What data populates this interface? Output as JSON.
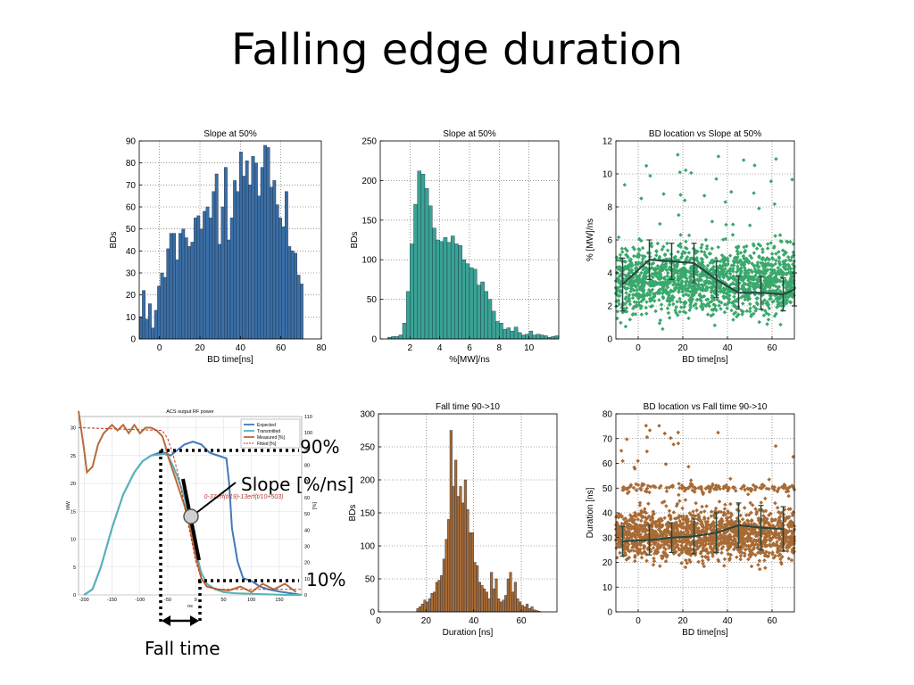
{
  "slide": {
    "title": "Falling edge duration"
  },
  "annotations": {
    "p90": "90%",
    "slope": "Slope [%/ns]",
    "p10": "10%",
    "fall_time": "Fall time"
  },
  "chart_data": [
    {
      "id": "hist-bd-time",
      "type": "bar",
      "title": "Slope at 50%",
      "xlabel": "BD time[ns]",
      "ylabel": "BDs",
      "xlim": [
        -10,
        80
      ],
      "ylim": [
        0,
        90
      ],
      "xticks": [
        0,
        20,
        40,
        60,
        80
      ],
      "yticks": [
        0,
        10,
        20,
        30,
        40,
        50,
        60,
        70,
        80,
        90
      ],
      "bin_width": 1.5,
      "x_start": -10,
      "color": "#3a6ea5",
      "grid": true,
      "values": [
        10,
        22,
        9,
        16,
        5,
        13,
        24,
        30,
        28,
        41,
        48,
        48,
        36,
        48,
        50,
        46,
        42,
        44,
        55,
        56,
        50,
        58,
        60,
        55,
        67,
        75,
        43,
        60,
        78,
        45,
        55,
        72,
        67,
        85,
        74,
        81,
        70,
        83,
        80,
        65,
        78,
        88,
        87,
        69,
        72,
        61,
        55,
        51,
        67,
        42,
        40,
        39,
        29,
        25
      ]
    },
    {
      "id": "hist-slope",
      "type": "bar",
      "title": "Slope at 50%",
      "xlabel": "%[MW]/ns",
      "ylabel": "BDs",
      "xlim": [
        0,
        12
      ],
      "ylim": [
        0,
        250
      ],
      "xticks": [
        2,
        4,
        6,
        8,
        10
      ],
      "yticks": [
        0,
        50,
        100,
        150,
        200,
        250
      ],
      "bin_width": 0.25,
      "x_start": 0.5,
      "color": "#3aa394",
      "grid": true,
      "values": [
        2,
        3,
        3,
        5,
        20,
        60,
        120,
        170,
        212,
        208,
        190,
        168,
        140,
        125,
        123,
        128,
        122,
        130,
        120,
        118,
        100,
        95,
        90,
        88,
        68,
        72,
        60,
        50,
        35,
        22,
        20,
        12,
        14,
        10,
        15,
        8,
        5,
        6,
        10,
        5,
        6,
        5,
        4,
        2,
        3,
        4,
        3,
        1,
        0,
        0,
        0,
        0
      ]
    },
    {
      "id": "scatter-slope",
      "type": "scatter",
      "title": "BD location vs Slope at 50%",
      "xlabel": "BD time[ns]",
      "ylabel": "% [MW]/ns",
      "xlim": [
        -10,
        70
      ],
      "ylim": [
        0,
        12
      ],
      "xticks": [
        0,
        20,
        40,
        60
      ],
      "yticks": [
        0,
        2,
        4,
        6,
        8,
        10,
        12
      ],
      "color": "#3aa86c",
      "grid": true,
      "cloud": {
        "y_center": 3.6,
        "y_spread": 1.4,
        "count": 1600,
        "outlier_max": 11.5
      },
      "mean_line": {
        "x": [
          -7,
          5,
          15,
          25,
          35,
          45,
          55,
          65,
          70
        ],
        "y": [
          3.3,
          4.8,
          4.7,
          4.6,
          3.6,
          2.8,
          2.8,
          2.7,
          3.0
        ],
        "err": [
          1.6,
          1.2,
          1.1,
          1.2,
          1.1,
          1.0,
          1.0,
          1.0,
          1.0
        ]
      }
    },
    {
      "id": "hist-fall-time",
      "type": "bar",
      "title": "Fall time 90->10",
      "xlabel": "Duration [ns]",
      "ylabel": "BDs",
      "xlim": [
        0,
        75
      ],
      "ylim": [
        0,
        300
      ],
      "xticks": [
        0,
        20,
        40,
        60
      ],
      "yticks": [
        0,
        50,
        100,
        150,
        200,
        250,
        300
      ],
      "bin_width": 1.0,
      "x_start": 1,
      "color": "#a86b35",
      "grid": true,
      "values": [
        0,
        0,
        0,
        0,
        0,
        0,
        0,
        0,
        0,
        0,
        0,
        0,
        0,
        0,
        0,
        5,
        8,
        12,
        18,
        15,
        20,
        28,
        30,
        45,
        48,
        55,
        80,
        110,
        140,
        275,
        190,
        230,
        175,
        190,
        165,
        200,
        155,
        120,
        120,
        75,
        70,
        45,
        40,
        35,
        30,
        20,
        60,
        35,
        50,
        20,
        15,
        18,
        25,
        50,
        60,
        30,
        45,
        20,
        15,
        10,
        8,
        12,
        5,
        8,
        3,
        2,
        1,
        0,
        0,
        0,
        0,
        0,
        0,
        0
      ]
    },
    {
      "id": "scatter-fall-time",
      "type": "scatter",
      "title": "BD location vs Fall time 90->10",
      "xlabel": "BD time[ns]",
      "ylabel": "Duration [ns]",
      "xlim": [
        -10,
        70
      ],
      "ylim": [
        0,
        80
      ],
      "xticks": [
        0,
        20,
        40,
        60
      ],
      "yticks": [
        0,
        10,
        20,
        30,
        40,
        50,
        60,
        70,
        80
      ],
      "color": "#a86b35",
      "grid": true,
      "cloud": {
        "y_center": 31,
        "y_spread": 7,
        "count": 1700,
        "band_y": 50,
        "outlier_max": 76
      },
      "mean_line": {
        "x": [
          -7,
          5,
          15,
          25,
          35,
          45,
          55,
          65
        ],
        "y": [
          28.5,
          29,
          30,
          30.5,
          32,
          35,
          34,
          33.5
        ],
        "err": [
          6,
          6,
          6,
          7,
          8,
          9,
          9,
          9
        ]
      }
    },
    {
      "id": "waveform",
      "type": "line",
      "title": "ACS output RF power",
      "xlabel": "ns",
      "ylabel": "MW",
      "y2label": "[%]",
      "xlim": [
        -210,
        190
      ],
      "ylim": [
        0,
        32
      ],
      "xticks": [
        -200,
        -150,
        -100,
        -50,
        0,
        50,
        100,
        150
      ],
      "yticks": [
        0,
        5,
        10,
        15,
        20,
        25,
        30
      ],
      "y2ticks": [
        0,
        10,
        20,
        30,
        40,
        50,
        60,
        70,
        80,
        90,
        100,
        110
      ],
      "fit_label": "0-37erf(t/19)-13erf(t/10+503)",
      "legend": [
        "Expected",
        "Transmitted",
        "Measured [%]",
        "Fitted [%]"
      ],
      "series": [
        {
          "name": "Expected",
          "color": "#3f7ab8",
          "x": [
            -200,
            -185,
            -170,
            -150,
            -130,
            -110,
            -95,
            -80,
            -65,
            -55,
            -45,
            -35,
            -20,
            -5,
            10,
            25,
            40,
            55,
            60,
            65,
            75,
            85,
            100,
            115,
            130,
            150,
            170,
            190
          ],
          "y": [
            0,
            1,
            5,
            12,
            18,
            22,
            24,
            25,
            25.5,
            25.5,
            25,
            25.8,
            27,
            27.5,
            27,
            25.5,
            25,
            24.5,
            20,
            12,
            6,
            3,
            2.5,
            1.5,
            1,
            0.6,
            0.3,
            0
          ]
        },
        {
          "name": "Transmitted",
          "color": "#55b3b8",
          "x": [
            -200,
            -185,
            -170,
            -150,
            -130,
            -110,
            -95,
            -80,
            -65,
            -55,
            -50,
            -40,
            -30,
            -20,
            -10,
            0,
            10,
            20,
            35,
            50,
            70,
            100,
            130,
            160,
            190
          ],
          "y": [
            0,
            1,
            5,
            12,
            18,
            22,
            24,
            25,
            25.2,
            25.3,
            25,
            23,
            20.5,
            17.5,
            13,
            8,
            4,
            2,
            1,
            0.5,
            0.3,
            0.2,
            0.1,
            0,
            0
          ]
        },
        {
          "name": "Measured [%]",
          "color": "#b86b3a",
          "x": [
            -210,
            -200,
            -195,
            -185,
            -175,
            -165,
            -150,
            -140,
            -130,
            -120,
            -110,
            -100,
            -90,
            -80,
            -70,
            -60,
            -55,
            -50,
            -40,
            -30,
            -20,
            -10,
            0,
            10,
            20,
            40,
            60,
            80,
            100,
            120,
            140,
            160,
            180
          ],
          "y": [
            33,
            26,
            22,
            23,
            27,
            29,
            30.5,
            29.5,
            30.5,
            29,
            30.5,
            29,
            30,
            30,
            29.5,
            28.5,
            27,
            25,
            22,
            19,
            16,
            12,
            7,
            3,
            1.5,
            1,
            0.8,
            1.5,
            0.5,
            2,
            1,
            2,
            0.5
          ]
        },
        {
          "name": "Fitted [%]",
          "color": "#c0392b",
          "x": [
            -210,
            -60,
            -50,
            -40,
            -30,
            -20,
            -10,
            0,
            10,
            20,
            40,
            80,
            190
          ],
          "y": [
            30,
            29.5,
            28,
            25,
            21,
            16,
            11,
            6,
            3,
            1.5,
            1,
            1,
            1
          ]
        }
      ]
    }
  ]
}
